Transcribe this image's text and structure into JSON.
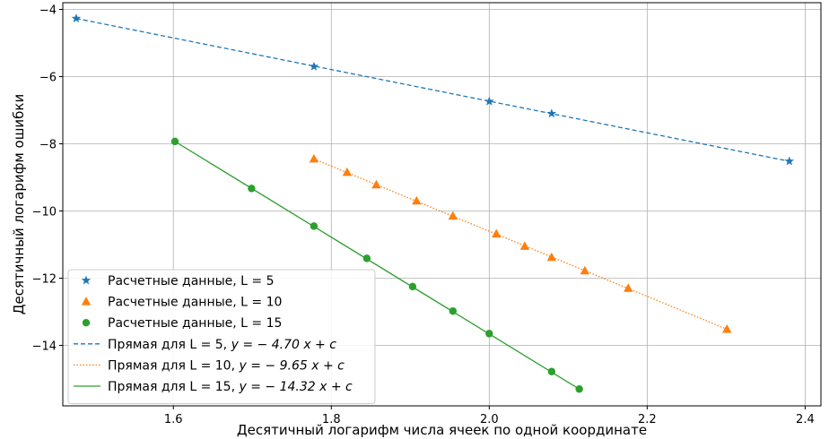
{
  "chart_data": {
    "type": "scatter",
    "xlabel": "Десятичный логарифм числа ячеек по одной координате",
    "ylabel": "Десятичный логарифм ошибки",
    "xlim": [
      1.46,
      2.42
    ],
    "ylim": [
      -15.8,
      -3.8
    ],
    "xticks": [
      1.6,
      1.8,
      2.0,
      2.2,
      2.4
    ],
    "xtick_labels": [
      "1.6",
      "1.8",
      "2.0",
      "2.2",
      "2.4"
    ],
    "yticks": [
      -4,
      -6,
      -8,
      -10,
      -12,
      -14
    ],
    "ytick_labels": [
      "−4",
      "−6",
      "−8",
      "−10",
      "−12",
      "−14"
    ],
    "grid": true,
    "legend_position": "bottom-left",
    "series": [
      {
        "name": "Расчетные данные, L = 5",
        "kind": "points",
        "marker": "star",
        "color": "#1f77b4",
        "x": [
          1.477,
          1.778,
          2.0,
          2.079,
          2.38
        ],
        "y": [
          -4.27,
          -5.7,
          -6.74,
          -7.1,
          -8.52
        ]
      },
      {
        "name": "Расчетные данные, L = 10",
        "kind": "points",
        "marker": "triangle",
        "color": "#ff7f0e",
        "x": [
          1.778,
          1.82,
          1.857,
          1.908,
          1.954,
          2.009,
          2.045,
          2.079,
          2.121,
          2.176,
          2.301
        ],
        "y": [
          -8.45,
          -8.85,
          -9.22,
          -9.7,
          -10.15,
          -10.68,
          -11.05,
          -11.38,
          -11.78,
          -12.3,
          -13.52
        ]
      },
      {
        "name": "Расчетные данные, L = 15",
        "kind": "points",
        "marker": "circle",
        "color": "#2ca02c",
        "x": [
          1.602,
          1.699,
          1.778,
          1.845,
          1.903,
          1.954,
          2.0,
          2.079,
          2.114
        ],
        "y": [
          -7.93,
          -9.33,
          -10.45,
          -11.41,
          -12.25,
          -12.98,
          -13.65,
          -14.78,
          -15.3
        ]
      },
      {
        "name": "Прямая для L = 5, ",
        "formula": "y = − 4.70 x + c",
        "kind": "line",
        "style": "dashed",
        "color": "#1f77b4",
        "x": [
          1.477,
          2.38
        ],
        "y": [
          -4.27,
          -8.52
        ]
      },
      {
        "name": "Прямая для L = 10, ",
        "formula": "y = − 9.65 x + c",
        "kind": "line",
        "style": "dotted",
        "color": "#ff7f0e",
        "x": [
          1.778,
          2.301
        ],
        "y": [
          -8.45,
          -13.52
        ]
      },
      {
        "name": "Прямая для  L = 15, ",
        "formula": "y = − 14.32 x + c",
        "kind": "line",
        "style": "solid",
        "color": "#2ca02c",
        "x": [
          1.602,
          2.114
        ],
        "y": [
          -7.93,
          -15.3
        ]
      }
    ]
  }
}
